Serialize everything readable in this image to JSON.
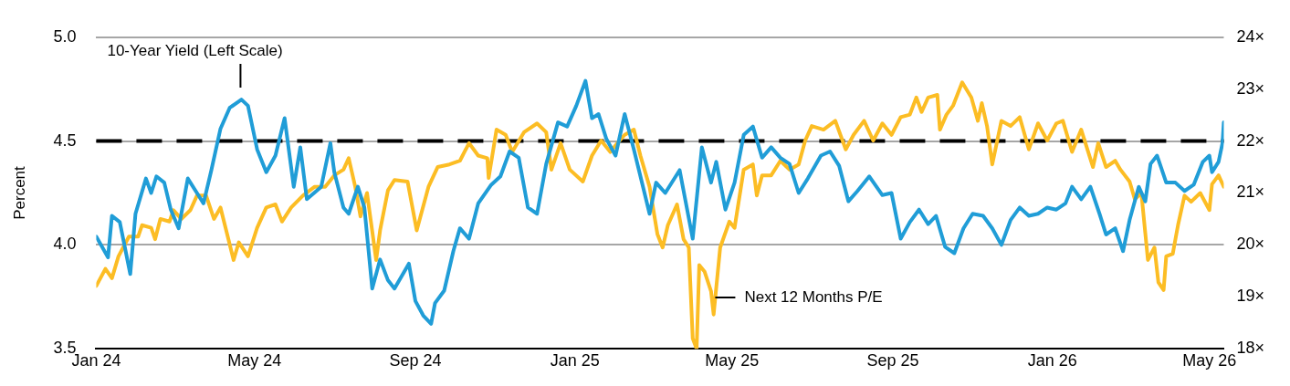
{
  "chart_data": {
    "type": "line",
    "ylabel": "Percent",
    "xlim": [
      "2024-01-01",
      "2026-05-12"
    ],
    "xticks": [
      {
        "value": "2024-01-01",
        "label": "Jan 24"
      },
      {
        "value": "2024-05-01",
        "label": "May 24"
      },
      {
        "value": "2024-09-01",
        "label": "Sep 24"
      },
      {
        "value": "2025-01-01",
        "label": "Jan 25"
      },
      {
        "value": "2025-05-01",
        "label": "May 25"
      },
      {
        "value": "2025-09-01",
        "label": "Sep 25"
      },
      {
        "value": "2026-01-01",
        "label": "Jan 26"
      },
      {
        "value": "2026-05-01",
        "label": "May 26"
      }
    ],
    "ylim": [
      3.5,
      5.0
    ],
    "yticks": [
      {
        "value": 3.5,
        "label": "3.5"
      },
      {
        "value": 4.0,
        "label": "4.0"
      },
      {
        "value": 4.5,
        "label": "4.5"
      },
      {
        "value": 5.0,
        "label": "5.0"
      }
    ],
    "y2lim": [
      18,
      24
    ],
    "y2ticks": [
      {
        "value": 18,
        "label": "18×"
      },
      {
        "value": 19,
        "label": "19×"
      },
      {
        "value": 20,
        "label": "20×"
      },
      {
        "value": 21,
        "label": "21×"
      },
      {
        "value": 22,
        "label": "22×"
      },
      {
        "value": 23,
        "label": "23×"
      },
      {
        "value": 24,
        "label": "24×"
      }
    ],
    "grid": "y",
    "legend": false,
    "marker": "none",
    "line_style": "solid",
    "ref_lines": [
      {
        "axis": "y",
        "value": 4.5,
        "color": "#000000",
        "line_style": "dashed"
      }
    ],
    "series": [
      {
        "name": "10-Year Yield (Left Scale)",
        "color": "#209dd7",
        "axis": "y",
        "x": [
          "2024-01-01",
          "2024-01-10",
          "2024-01-13",
          "2024-01-19",
          "2024-01-27",
          "2024-01-31",
          "2024-02-08",
          "2024-02-12",
          "2024-02-16",
          "2024-02-22",
          "2024-02-27",
          "2024-03-04",
          "2024-03-11",
          "2024-03-18",
          "2024-03-23",
          "2024-03-29",
          "2024-04-05",
          "2024-04-12",
          "2024-04-21",
          "2024-04-26",
          "2024-05-03",
          "2024-05-10",
          "2024-05-17",
          "2024-05-24",
          "2024-05-31",
          "2024-06-05",
          "2024-06-10",
          "2024-06-21",
          "2024-06-28",
          "2024-07-01",
          "2024-07-08",
          "2024-07-12",
          "2024-07-19",
          "2024-07-24",
          "2024-07-30",
          "2024-08-05",
          "2024-08-11",
          "2024-08-16",
          "2024-08-27",
          "2024-09-01",
          "2024-09-07",
          "2024-09-13",
          "2024-09-16",
          "2024-09-23",
          "2024-09-30",
          "2024-10-05",
          "2024-10-12",
          "2024-10-19",
          "2024-10-29",
          "2024-11-05",
          "2024-11-12",
          "2024-11-19",
          "2024-11-26",
          "2024-12-03",
          "2024-12-10",
          "2024-12-19",
          "2024-12-26",
          "2025-01-02",
          "2025-01-09",
          "2025-01-14",
          "2025-01-19",
          "2025-01-25",
          "2025-02-01",
          "2025-02-08",
          "2025-02-15",
          "2025-02-22",
          "2025-02-27",
          "2025-03-04",
          "2025-03-11",
          "2025-03-22",
          "2025-04-01",
          "2025-04-08",
          "2025-04-15",
          "2025-04-19",
          "2025-04-26",
          "2025-05-03",
          "2025-05-10",
          "2025-05-17",
          "2025-05-24",
          "2025-05-31",
          "2025-06-07",
          "2025-06-14",
          "2025-06-21",
          "2025-06-28",
          "2025-07-08",
          "2025-07-15",
          "2025-07-22",
          "2025-07-29",
          "2025-08-05",
          "2025-08-14",
          "2025-08-24",
          "2025-08-31",
          "2025-09-07",
          "2025-09-14",
          "2025-09-21",
          "2025-09-28",
          "2025-10-04",
          "2025-10-11",
          "2025-10-18",
          "2025-10-25",
          "2025-11-01",
          "2025-11-09",
          "2025-11-16",
          "2025-11-23",
          "2025-11-30",
          "2025-12-07",
          "2025-12-14",
          "2025-12-21",
          "2025-12-28",
          "2026-01-04",
          "2026-01-11",
          "2026-01-16",
          "2026-01-23",
          "2026-01-30",
          "2026-02-06",
          "2026-02-11",
          "2026-02-18",
          "2026-02-24",
          "2026-03-01",
          "2026-03-08",
          "2026-03-13",
          "2026-03-17",
          "2026-03-22",
          "2026-03-29",
          "2026-04-05",
          "2026-04-12",
          "2026-04-19",
          "2026-04-26",
          "2026-05-01",
          "2026-05-03",
          "2026-05-08",
          "2026-05-11",
          "2026-05-12"
        ],
        "values": [
          4.04,
          3.94,
          4.14,
          4.11,
          3.86,
          4.15,
          4.32,
          4.25,
          4.33,
          4.3,
          4.17,
          4.08,
          4.32,
          4.25,
          4.2,
          4.36,
          4.56,
          4.66,
          4.7,
          4.67,
          4.46,
          4.35,
          4.43,
          4.61,
          4.28,
          4.47,
          4.22,
          4.28,
          4.49,
          4.35,
          4.18,
          4.15,
          4.28,
          4.18,
          3.79,
          3.93,
          3.83,
          3.79,
          3.91,
          3.73,
          3.66,
          3.62,
          3.72,
          3.78,
          3.97,
          4.08,
          4.03,
          4.2,
          4.29,
          4.33,
          4.45,
          4.42,
          4.18,
          4.15,
          4.39,
          4.59,
          4.57,
          4.67,
          4.79,
          4.61,
          4.63,
          4.51,
          4.43,
          4.63,
          4.46,
          4.28,
          4.15,
          4.3,
          4.25,
          4.36,
          4.03,
          4.47,
          4.3,
          4.4,
          4.17,
          4.3,
          4.53,
          4.57,
          4.42,
          4.47,
          4.42,
          4.39,
          4.25,
          4.32,
          4.43,
          4.45,
          4.38,
          4.21,
          4.26,
          4.33,
          4.24,
          4.25,
          4.03,
          4.11,
          4.17,
          4.1,
          4.14,
          3.99,
          3.96,
          4.08,
          4.15,
          4.14,
          4.08,
          4.0,
          4.12,
          4.18,
          4.14,
          4.15,
          4.18,
          4.17,
          4.2,
          4.28,
          4.22,
          4.28,
          4.15,
          4.05,
          4.08,
          3.97,
          4.12,
          4.28,
          4.21,
          4.39,
          4.43,
          4.3,
          4.3,
          4.26,
          4.29,
          4.4,
          4.43,
          4.35,
          4.4,
          4.49,
          4.59
        ]
      },
      {
        "name": "Next 12 Months P/E",
        "color": "#fcbd24",
        "axis": "y2",
        "x": [
          "2024-01-01",
          "2024-01-08",
          "2024-01-13",
          "2024-01-18",
          "2024-01-26",
          "2024-02-02",
          "2024-02-05",
          "2024-02-12",
          "2024-02-15",
          "2024-02-19",
          "2024-02-26",
          "2024-02-29",
          "2024-03-06",
          "2024-03-13",
          "2024-03-18",
          "2024-03-25",
          "2024-03-31",
          "2024-04-05",
          "2024-04-15",
          "2024-04-19",
          "2024-04-26",
          "2024-05-03",
          "2024-05-10",
          "2024-05-17",
          "2024-05-22",
          "2024-05-29",
          "2024-06-07",
          "2024-06-16",
          "2024-06-24",
          "2024-07-01",
          "2024-07-08",
          "2024-07-12",
          "2024-07-17",
          "2024-07-21",
          "2024-07-26",
          "2024-08-02",
          "2024-08-05",
          "2024-08-11",
          "2024-08-16",
          "2024-08-26",
          "2024-09-02",
          "2024-09-11",
          "2024-09-18",
          "2024-09-27",
          "2024-10-05",
          "2024-10-12",
          "2024-10-19",
          "2024-10-26",
          "2024-10-27",
          "2024-11-02",
          "2024-11-09",
          "2024-11-14",
          "2024-11-23",
          "2024-12-03",
          "2024-12-10",
          "2024-12-14",
          "2024-12-21",
          "2024-12-28",
          "2025-01-07",
          "2025-01-14",
          "2025-01-21",
          "2025-01-28",
          "2025-02-04",
          "2025-02-08",
          "2025-02-15",
          "2025-02-20",
          "2025-02-27",
          "2025-03-05",
          "2025-03-09",
          "2025-03-13",
          "2025-03-20",
          "2025-03-25",
          "2025-03-29",
          "2025-04-01",
          "2025-04-04",
          "2025-04-06",
          "2025-04-10",
          "2025-04-15",
          "2025-04-17",
          "2025-04-22",
          "2025-04-29",
          "2025-05-03",
          "2025-05-10",
          "2025-05-17",
          "2025-05-20",
          "2025-05-24",
          "2025-05-31",
          "2025-06-07",
          "2025-06-14",
          "2025-06-21",
          "2025-06-26",
          "2025-07-01",
          "2025-07-10",
          "2025-07-19",
          "2025-07-27",
          "2025-08-02",
          "2025-08-10",
          "2025-08-17",
          "2025-08-24",
          "2025-08-31",
          "2025-09-07",
          "2025-09-14",
          "2025-09-19",
          "2025-09-23",
          "2025-09-28",
          "2025-10-05",
          "2025-10-07",
          "2025-10-12",
          "2025-10-17",
          "2025-10-24",
          "2025-10-31",
          "2025-11-05",
          "2025-11-08",
          "2025-11-12",
          "2025-11-16",
          "2025-11-23",
          "2025-11-30",
          "2025-12-07",
          "2025-12-14",
          "2025-12-21",
          "2025-12-28",
          "2026-01-04",
          "2026-01-09",
          "2026-01-16",
          "2026-01-23",
          "2026-02-01",
          "2026-02-05",
          "2026-02-11",
          "2026-02-18",
          "2026-02-22",
          "2026-03-01",
          "2026-03-05",
          "2026-03-10",
          "2026-03-15",
          "2026-03-20",
          "2026-03-23",
          "2026-03-27",
          "2026-03-29",
          "2026-04-03",
          "2026-04-07",
          "2026-04-12",
          "2026-04-17",
          "2026-04-24",
          "2026-05-01",
          "2026-05-03",
          "2026-05-08",
          "2026-05-12"
        ],
        "values": [
          19.21,
          19.54,
          19.36,
          19.78,
          20.16,
          20.16,
          20.38,
          20.33,
          20.11,
          20.5,
          20.45,
          20.67,
          20.5,
          20.67,
          20.95,
          20.95,
          20.5,
          20.72,
          19.71,
          20.05,
          19.78,
          20.33,
          20.72,
          20.78,
          20.45,
          20.72,
          20.95,
          21.12,
          21.12,
          21.34,
          21.45,
          21.67,
          21.12,
          20.55,
          21.0,
          19.71,
          20.28,
          21.05,
          21.25,
          21.22,
          20.28,
          21.12,
          21.5,
          21.55,
          21.62,
          21.96,
          21.72,
          21.67,
          21.29,
          22.22,
          22.12,
          21.79,
          22.17,
          22.34,
          22.17,
          21.45,
          21.96,
          21.45,
          21.22,
          21.72,
          22.01,
          21.79,
          22.01,
          22.12,
          22.22,
          21.72,
          21.12,
          20.21,
          19.95,
          20.38,
          20.78,
          20.11,
          19.95,
          18.2,
          18.0,
          19.61,
          19.49,
          19.11,
          18.66,
          19.95,
          20.45,
          20.33,
          21.45,
          21.55,
          20.95,
          21.34,
          21.34,
          21.62,
          21.45,
          21.55,
          22.01,
          22.29,
          22.22,
          22.39,
          21.84,
          22.12,
          22.39,
          22.01,
          22.34,
          22.12,
          22.46,
          22.51,
          22.84,
          22.56,
          22.84,
          22.89,
          22.22,
          22.51,
          22.68,
          23.13,
          22.84,
          22.39,
          22.73,
          22.29,
          21.55,
          22.39,
          22.29,
          22.46,
          21.84,
          22.34,
          22.01,
          22.34,
          22.39,
          21.79,
          22.22,
          21.5,
          21.96,
          21.5,
          21.62,
          21.45,
          21.22,
          20.88,
          21.0,
          19.71,
          19.95,
          19.28,
          19.13,
          19.78,
          19.83,
          20.38,
          20.95,
          20.83,
          21.0,
          20.67,
          21.17,
          21.34,
          21.12
        ]
      }
    ]
  }
}
